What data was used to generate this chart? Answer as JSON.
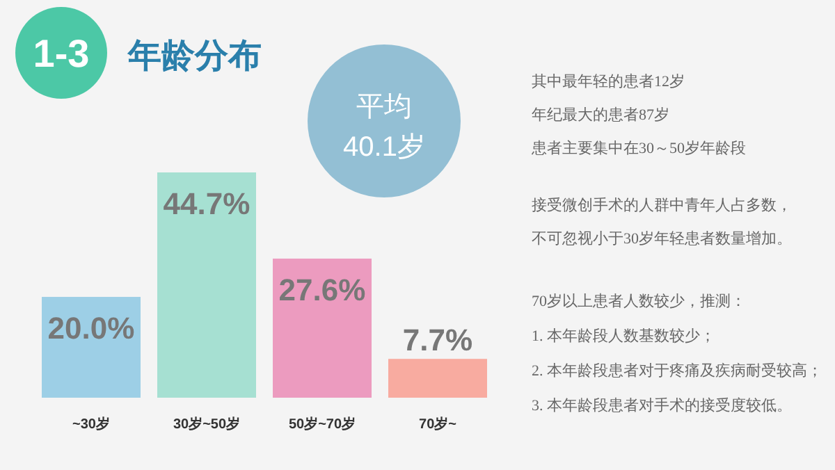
{
  "chart_data": {
    "type": "bar",
    "title": "年龄分布",
    "categories": [
      "~30岁",
      "30岁~50岁",
      "50岁~70岁",
      "70岁~"
    ],
    "values": [
      20.0,
      44.7,
      27.6,
      7.7
    ],
    "value_labels": [
      "20.0%",
      "44.7%",
      "27.6%",
      "7.7%"
    ],
    "colors": [
      "#9dcfe6",
      "#a6e0d2",
      "#ec9bbf",
      "#f8aba0"
    ],
    "annotations": [
      "1-3",
      "平均",
      "40.1岁",
      "其中最年轻的患者12岁",
      "年纪最大的患者87岁",
      "患者主要集中在30～50岁年龄段",
      "接受微创手术的人群中青年人占多数，",
      "不可忽视小于30岁年轻患者数量增加。",
      "70岁以上患者人数较少，推测：",
      "1. 本年龄段人数基数较少；",
      "2. 本年龄段患者对于疼痛及疾病耐受较高；",
      "3. 本年龄段患者对手术的接受度较低。"
    ]
  }
}
